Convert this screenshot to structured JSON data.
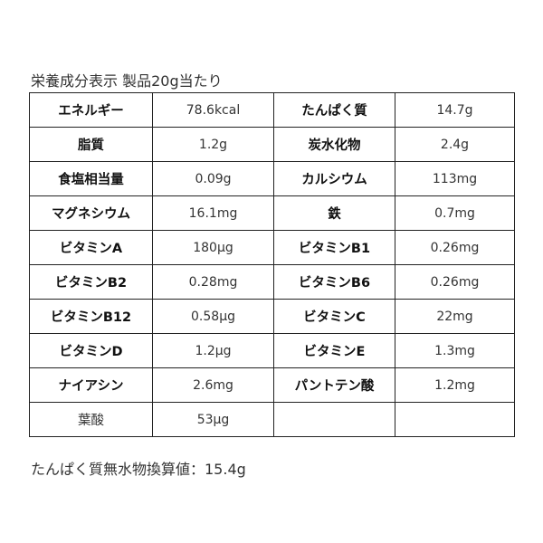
{
  "title": "栄養成分表示 製品20g当たり",
  "rows": [
    [
      {
        "label": "エネルギー",
        "value": "78.6kcal"
      },
      {
        "label": "たんぱく質",
        "value": "14.7g"
      }
    ],
    [
      {
        "label": "脂質",
        "value": "1.2g"
      },
      {
        "label": "炭水化物",
        "value": "2.4g"
      }
    ],
    [
      {
        "label": "食塩相当量",
        "value": "0.09g"
      },
      {
        "label": "カルシウム",
        "value": "113mg"
      }
    ],
    [
      {
        "label": "マグネシウム",
        "value": "16.1mg"
      },
      {
        "label": "鉄",
        "value": "0.7mg"
      }
    ],
    [
      {
        "label": "ビタミンA",
        "value": "180μg"
      },
      {
        "label": "ビタミンB1",
        "value": "0.26mg"
      }
    ],
    [
      {
        "label": "ビタミンB2",
        "value": "0.28mg"
      },
      {
        "label": "ビタミンB6",
        "value": "0.26mg"
      }
    ],
    [
      {
        "label": "ビタミンB12",
        "value": "0.58μg"
      },
      {
        "label": "ビタミンC",
        "value": "22mg"
      }
    ],
    [
      {
        "label": "ビタミンD",
        "value": "1.2μg"
      },
      {
        "label": "ビタミンE",
        "value": "1.3mg"
      }
    ],
    [
      {
        "label": "ナイアシン",
        "value": "2.6mg"
      },
      {
        "label": "パントテン酸",
        "value": "1.2mg"
      }
    ],
    [
      {
        "label": "葉酸",
        "value": "53μg"
      },
      {
        "label": "",
        "value": ""
      }
    ]
  ],
  "footer": "たんぱく質無水物換算値：15.4g"
}
